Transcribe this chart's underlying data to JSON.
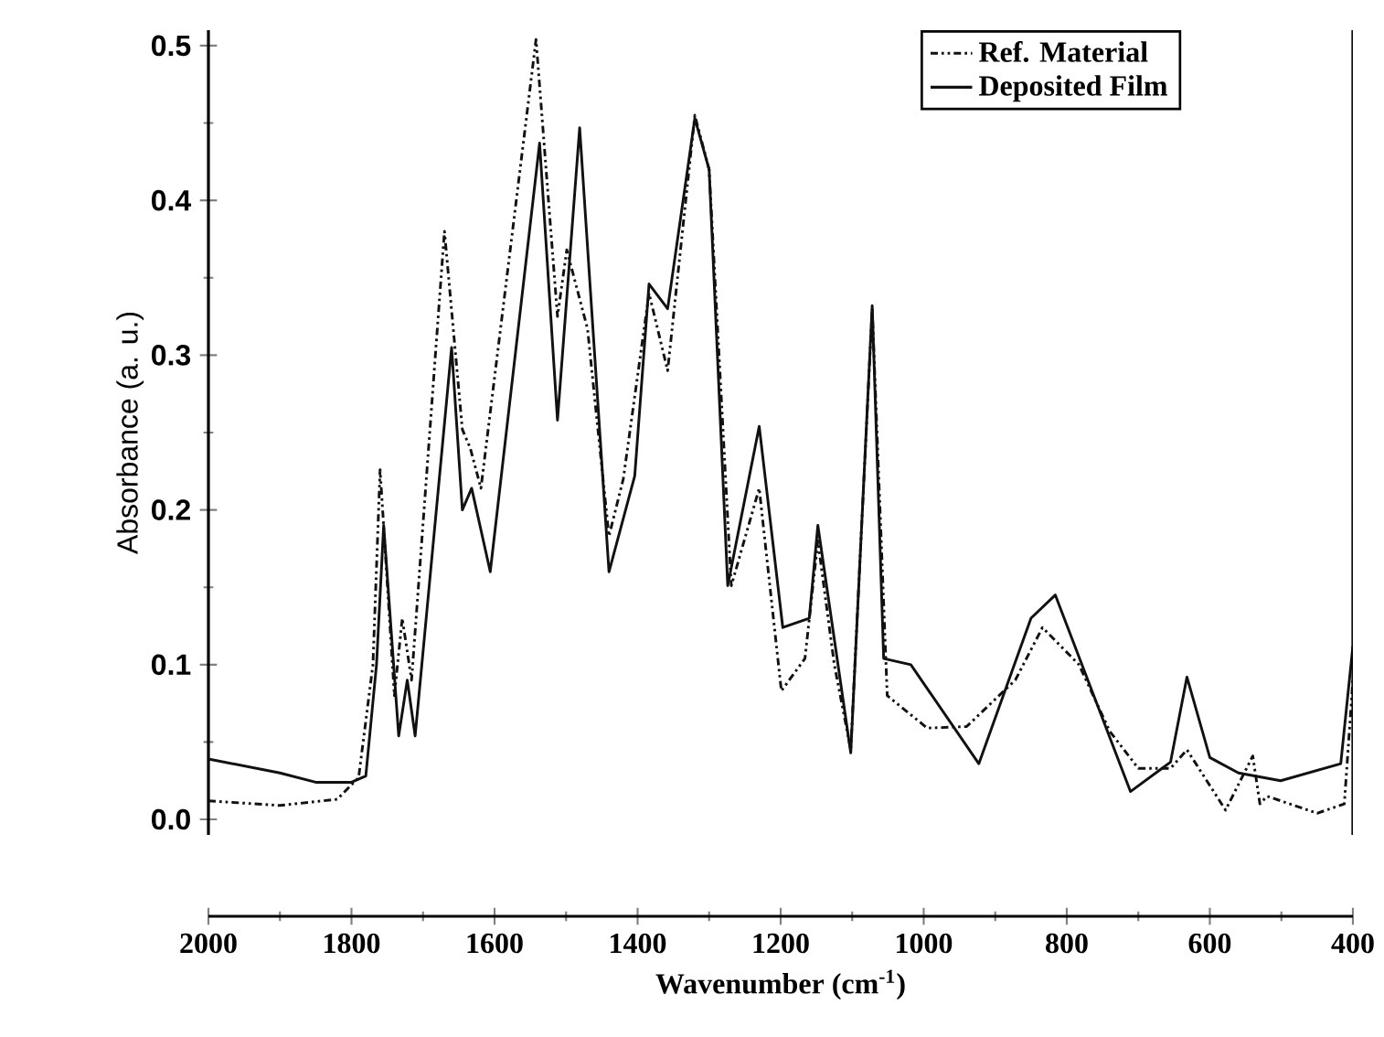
{
  "chart_data": {
    "type": "line",
    "xlabel": "Wavenumber (cm$^{-1}$)",
    "ylabel": "Absorbance (a. u.)",
    "xlim": [
      2000,
      400
    ],
    "ylim": [
      -0.01,
      0.51
    ],
    "xticks": [
      2000,
      1800,
      1600,
      1400,
      1200,
      1000,
      800,
      600,
      400
    ],
    "yticks": [
      {
        "value": 0,
        "label": "0.0"
      },
      0.1,
      0.2,
      0.3,
      0.4,
      0.5
    ],
    "legend": "top right",
    "grid": false,
    "marker": "none",
    "series": [
      {
        "name": "Ref. Material",
        "color": "#111111",
        "line_style": "dotted",
        "x": [
          2000,
          1900,
          1820,
          1790,
          1770,
          1760,
          1740,
          1729,
          1716,
          1670,
          1645,
          1634,
          1619,
          1542,
          1512,
          1499,
          1470,
          1440,
          1420,
          1384,
          1358,
          1320,
          1300,
          1269,
          1230,
          1199,
          1166,
          1148,
          1125,
          1102,
          1072,
          1051,
          995,
          940,
          872,
          834,
          783,
          740,
          700,
          655,
          632,
          578,
          540,
          530,
          520,
          450,
          412,
          400
        ],
        "values": [
          0.012,
          0.009,
          0.013,
          0.027,
          0.1,
          0.226,
          0.08,
          0.13,
          0.09,
          0.38,
          0.252,
          0.24,
          0.214,
          0.504,
          0.325,
          0.368,
          0.317,
          0.183,
          0.22,
          0.34,
          0.29,
          0.455,
          0.42,
          0.151,
          0.214,
          0.083,
          0.104,
          0.18,
          0.1,
          0.045,
          0.33,
          0.08,
          0.059,
          0.06,
          0.09,
          0.124,
          0.1,
          0.057,
          0.033,
          0.033,
          0.045,
          0.006,
          0.041,
          0.01,
          0.015,
          0.004,
          0.01,
          0.09
        ]
      },
      {
        "name": "Deposited Film",
        "color": "#111111",
        "line_style": "solid",
        "x": [
          2000,
          1900,
          1850,
          1800,
          1780,
          1765,
          1755,
          1734,
          1722,
          1711,
          1660,
          1645,
          1632,
          1606,
          1537,
          1512,
          1481,
          1440,
          1404,
          1384,
          1358,
          1320,
          1300,
          1274,
          1230,
          1197,
          1160,
          1148,
          1102,
          1072,
          1056,
          1018,
          923,
          850,
          816,
          711,
          655,
          632,
          600,
          560,
          501,
          417,
          400
        ],
        "values": [
          0.039,
          0.03,
          0.024,
          0.024,
          0.028,
          0.1,
          0.19,
          0.054,
          0.09,
          0.054,
          0.305,
          0.2,
          0.214,
          0.16,
          0.437,
          0.258,
          0.447,
          0.16,
          0.222,
          0.346,
          0.33,
          0.453,
          0.42,
          0.151,
          0.254,
          0.124,
          0.13,
          0.19,
          0.043,
          0.332,
          0.104,
          0.1,
          0.036,
          0.13,
          0.145,
          0.018,
          0.037,
          0.092,
          0.04,
          0.03,
          0.025,
          0.036,
          0.112
        ]
      }
    ]
  }
}
